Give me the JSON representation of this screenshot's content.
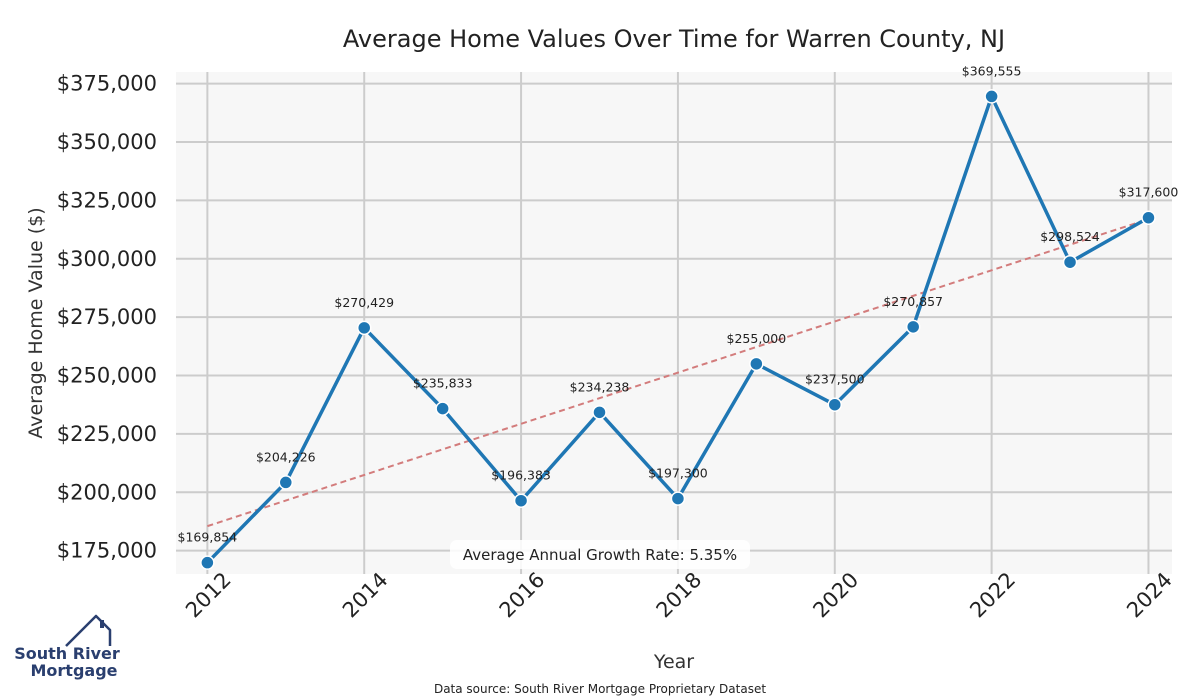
{
  "chart_data": {
    "type": "line",
    "title": "Average Home Values Over Time for Warren County, NJ",
    "xlabel": "Year",
    "ylabel": "Average Home Value ($)",
    "x": [
      2012,
      2013,
      2014,
      2015,
      2016,
      2017,
      2018,
      2019,
      2020,
      2021,
      2022,
      2023,
      2024
    ],
    "values": [
      169854,
      204226,
      270429,
      235833,
      196383,
      234238,
      197300,
      255000,
      237500,
      270857,
      369555,
      298524,
      317600
    ],
    "data_labels": [
      "$169,854",
      "$204,226",
      "$270,429",
      "$235,833",
      "$196,383",
      "$234,238",
      "$197,300",
      "$255,000",
      "$237,500",
      "$270,857",
      "$369,555",
      "$298,524",
      "$317,600"
    ],
    "xticks": [
      2012,
      2014,
      2016,
      2018,
      2020,
      2022,
      2024
    ],
    "xtick_labels": [
      "2012",
      "2014",
      "2016",
      "2018",
      "2020",
      "2022",
      "2024"
    ],
    "yticks": [
      175000,
      200000,
      225000,
      250000,
      275000,
      300000,
      325000,
      350000,
      375000
    ],
    "ytick_labels": [
      "$175,000",
      "$200,000",
      "$225,000",
      "$250,000",
      "$275,000",
      "$300,000",
      "$325,000",
      "$350,000",
      "$375,000"
    ],
    "ylim": [
      165000,
      380000
    ],
    "xlim": [
      2011.6,
      2024.3
    ],
    "trendline": {
      "x": [
        2012,
        2024
      ],
      "y": [
        185500,
        317000
      ]
    },
    "annotation": "Average Annual Growth Rate: 5.35%",
    "source": "Data source: South River Mortgage Proprietary Dataset",
    "grid": true,
    "colors": {
      "line": "#1f77b4",
      "trend": "#d37c7c",
      "plot_bg": "#f7f7f7",
      "grid": "#cccccc"
    }
  },
  "logo": {
    "line1": "South River",
    "line2": "Mortgage"
  }
}
